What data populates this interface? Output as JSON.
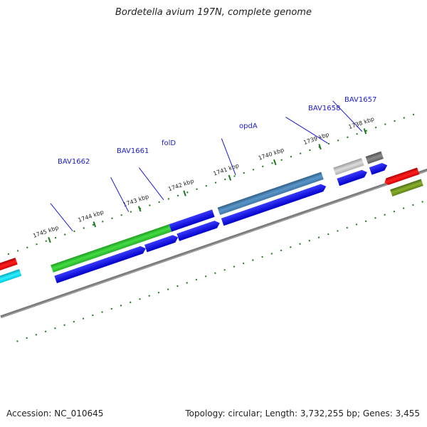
{
  "title": "Bordetella avium 197N, complete genome",
  "footer": {
    "accession": "Accession: NC_010645",
    "summary": "Topology: circular; Length: 3,732,255 bp; Genes: 3,455"
  },
  "scale_labels": [
    "1745 kbp",
    "1744 kbp",
    "1743 kbp",
    "1742 kbp",
    "1741 kbp",
    "1740 kbp",
    "1739 kbp",
    "1738 kbp"
  ],
  "gene_labels": [
    "BAV1662",
    "BAV1661",
    "folD",
    "opdA",
    "BAV1658",
    "BAV1657"
  ],
  "colors": {
    "backbone": "#808080",
    "tick": "#1a7a1a",
    "gene_label": "#1a1acc",
    "cds": "#0000ee",
    "green_feature": "#33cc33",
    "steelblue_feature": "#4682b4",
    "silver_feature": "#c0c0c0",
    "dimgray_feature": "#6e6e6e",
    "red_feature": "#ee0000",
    "olive_feature": "#6b8e23",
    "cyan_feature": "#00ddee"
  }
}
